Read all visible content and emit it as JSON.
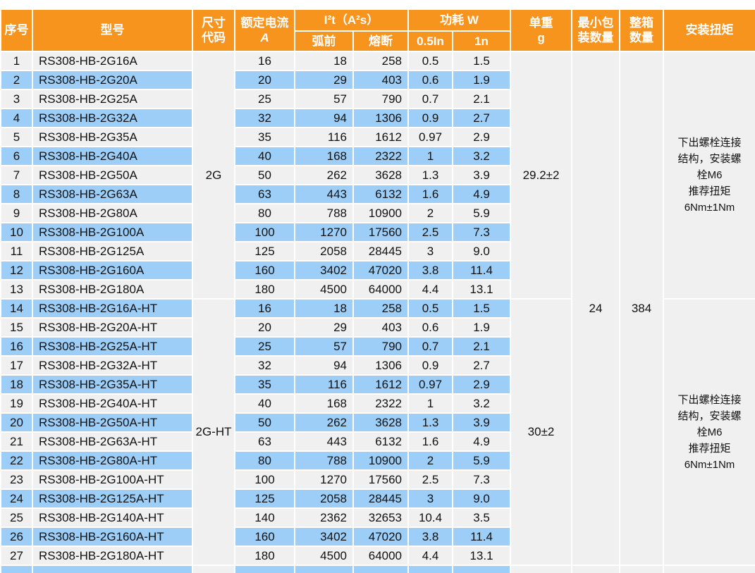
{
  "header": {
    "col_seq": "序号",
    "col_model": "型号",
    "col_size_code": "尺寸\n代码",
    "col_rated_current": "额定电流",
    "col_rated_current_unit": "A",
    "col_i2t_group": "I²t（A²s）",
    "col_prearc": "弧前",
    "col_melting": "熔断",
    "col_power_group": "功耗 W",
    "col_power_half": "0.5In",
    "col_power_full": "1n",
    "col_weight": "单重",
    "col_weight_unit": "g",
    "col_min_pack": "最小包\n装数量",
    "col_box_qty": "整箱\n数量",
    "col_torque": "安装扭矩"
  },
  "groups": [
    {
      "size_code": "2G",
      "weight": "29.2±2",
      "torque": "下出螺栓连接\n结构，安装螺\n栓M6\n推荐扭矩\n6Nm±1Nm",
      "row_count": 13
    },
    {
      "size_code": "2G-HT",
      "weight": "30±2",
      "torque": "下出螺栓连接\n结构，安装螺\n栓M6\n推荐扭矩\n6Nm±1Nm",
      "row_count": 14
    }
  ],
  "min_pack_qty": "24",
  "box_qty": "384",
  "rows": [
    {
      "no": "1",
      "model": "RS308-HB-2G16A",
      "current": "16",
      "prearc": "18",
      "melt": "258",
      "p05": "0.5",
      "p1": "1.5"
    },
    {
      "no": "2",
      "model": "RS308-HB-2G20A",
      "current": "20",
      "prearc": "29",
      "melt": "403",
      "p05": "0.6",
      "p1": "1.9"
    },
    {
      "no": "3",
      "model": "RS308-HB-2G25A",
      "current": "25",
      "prearc": "57",
      "melt": "790",
      "p05": "0.7",
      "p1": "2.1"
    },
    {
      "no": "4",
      "model": "RS308-HB-2G32A",
      "current": "32",
      "prearc": "94",
      "melt": "1306",
      "p05": "0.9",
      "p1": "2.7"
    },
    {
      "no": "5",
      "model": "RS308-HB-2G35A",
      "current": "35",
      "prearc": "116",
      "melt": "1612",
      "p05": "0.97",
      "p1": "2.9"
    },
    {
      "no": "6",
      "model": "RS308-HB-2G40A",
      "current": "40",
      "prearc": "168",
      "melt": "2322",
      "p05": "1",
      "p1": "3.2"
    },
    {
      "no": "7",
      "model": "RS308-HB-2G50A",
      "current": "50",
      "prearc": "262",
      "melt": "3628",
      "p05": "1.3",
      "p1": "3.9"
    },
    {
      "no": "8",
      "model": "RS308-HB-2G63A",
      "current": "63",
      "prearc": "443",
      "melt": "6132",
      "p05": "1.6",
      "p1": "4.9"
    },
    {
      "no": "9",
      "model": "RS308-HB-2G80A",
      "current": "80",
      "prearc": "788",
      "melt": "10900",
      "p05": "2",
      "p1": "5.9"
    },
    {
      "no": "10",
      "model": "RS308-HB-2G100A",
      "current": "100",
      "prearc": "1270",
      "melt": "17560",
      "p05": "2.5",
      "p1": "7.3"
    },
    {
      "no": "11",
      "model": "RS308-HB-2G125A",
      "current": "125",
      "prearc": "2058",
      "melt": "28445",
      "p05": "3",
      "p1": "9.0"
    },
    {
      "no": "12",
      "model": "RS308-HB-2G160A",
      "current": "160",
      "prearc": "3402",
      "melt": "47020",
      "p05": "3.8",
      "p1": "11.4"
    },
    {
      "no": "13",
      "model": "RS308-HB-2G180A",
      "current": "180",
      "prearc": "4500",
      "melt": "64000",
      "p05": "4.4",
      "p1": "13.1"
    },
    {
      "no": "14",
      "model": "RS308-HB-2G16A-HT",
      "current": "16",
      "prearc": "18",
      "melt": "258",
      "p05": "0.5",
      "p1": "1.5"
    },
    {
      "no": "15",
      "model": "RS308-HB-2G20A-HT",
      "current": "20",
      "prearc": "29",
      "melt": "403",
      "p05": "0.6",
      "p1": "1.9"
    },
    {
      "no": "16",
      "model": "RS308-HB-2G25A-HT",
      "current": "25",
      "prearc": "57",
      "melt": "790",
      "p05": "0.7",
      "p1": "2.1"
    },
    {
      "no": "17",
      "model": "RS308-HB-2G32A-HT",
      "current": "32",
      "prearc": "94",
      "melt": "1306",
      "p05": "0.9",
      "p1": "2.7"
    },
    {
      "no": "18",
      "model": "RS308-HB-2G35A-HT",
      "current": "35",
      "prearc": "116",
      "melt": "1612",
      "p05": "0.97",
      "p1": "2.9"
    },
    {
      "no": "19",
      "model": "RS308-HB-2G40A-HT",
      "current": "40",
      "prearc": "168",
      "melt": "2322",
      "p05": "1",
      "p1": "3.2"
    },
    {
      "no": "20",
      "model": "RS308-HB-2G50A-HT",
      "current": "50",
      "prearc": "262",
      "melt": "3628",
      "p05": "1.3",
      "p1": "3.9"
    },
    {
      "no": "21",
      "model": "RS308-HB-2G63A-HT",
      "current": "63",
      "prearc": "443",
      "melt": "6132",
      "p05": "1.6",
      "p1": "4.9"
    },
    {
      "no": "22",
      "model": "RS308-HB-2G80A-HT",
      "current": "80",
      "prearc": "788",
      "melt": "10900",
      "p05": "2",
      "p1": "5.9"
    },
    {
      "no": "23",
      "model": "RS308-HB-2G100A-HT",
      "current": "100",
      "prearc": "1270",
      "melt": "17560",
      "p05": "2.5",
      "p1": "7.3"
    },
    {
      "no": "24",
      "model": "RS308-HB-2G125A-HT",
      "current": "125",
      "prearc": "2058",
      "melt": "28445",
      "p05": "3",
      "p1": "9.0"
    },
    {
      "no": "25",
      "model": "RS308-HB-2G140A-HT",
      "current": "140",
      "prearc": "2362",
      "melt": "32653",
      "p05": "10.4",
      "p1": "3.5"
    },
    {
      "no": "26",
      "model": "RS308-HB-2G160A-HT",
      "current": "160",
      "prearc": "3402",
      "melt": "47020",
      "p05": "3.8",
      "p1": "11.4"
    },
    {
      "no": "27",
      "model": "RS308-HB-2G180A-HT",
      "current": "180",
      "prearc": "4500",
      "melt": "64000",
      "p05": "4.4",
      "p1": "13.1"
    }
  ],
  "colors": {
    "header_bg": "#F7941D",
    "header_text": "#FFFFFF",
    "row_even_bg": "#9DCEF8",
    "row_odd_bg": "#F0F0F0",
    "merged_cell_bg": "#F0F0F0",
    "grid_gap": "#FFFFFF",
    "body_text": "#111111"
  }
}
